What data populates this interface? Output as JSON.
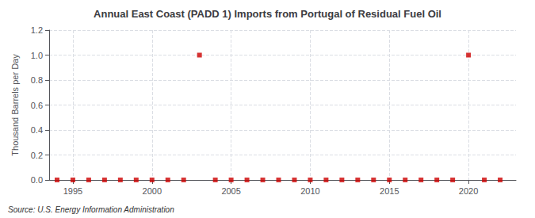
{
  "chart_data": {
    "type": "scatter",
    "title": "Annual East Coast (PADD 1) Imports from Portugal of Residual Fuel Oil",
    "ylabel": "Thousand Barrels per Day",
    "annotation": "Source: U.S. Energy Information Administration",
    "x": [
      1994,
      1995,
      1996,
      1997,
      1998,
      1999,
      2000,
      2001,
      2002,
      2003,
      2004,
      2005,
      2006,
      2007,
      2008,
      2009,
      2010,
      2011,
      2012,
      2013,
      2014,
      2015,
      2016,
      2017,
      2018,
      2019,
      2020,
      2021,
      2022
    ],
    "values": [
      0,
      0,
      0,
      0,
      0,
      0,
      0,
      0,
      0,
      1.0,
      0,
      0,
      0,
      0,
      0,
      0,
      0,
      0,
      0,
      0,
      0,
      0,
      0,
      0,
      0,
      0,
      1.0,
      0,
      0
    ],
    "color": "#cc0000",
    "marker": "square",
    "xlim": [
      1993.5,
      2023
    ],
    "xticks": [
      1995,
      2000,
      2005,
      2010,
      2015,
      2020
    ],
    "ylim": [
      0,
      1.2
    ],
    "yticks": [
      {
        "value": 0,
        "label": "0.0"
      },
      0.2,
      0.4,
      0.6,
      0.8,
      {
        "value": 1,
        "label": "1.0"
      },
      1.2
    ],
    "grid": true
  }
}
